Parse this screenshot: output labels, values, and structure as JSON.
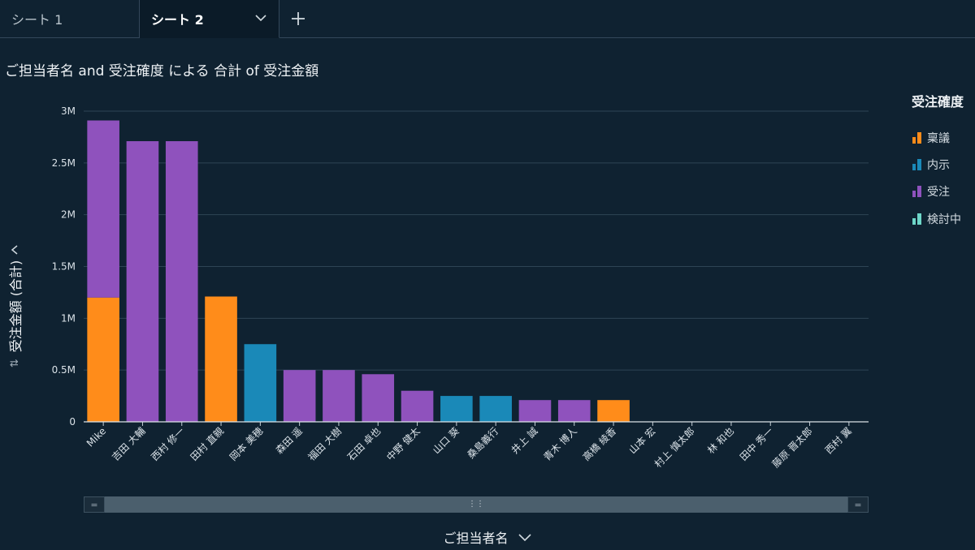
{
  "tabs": [
    {
      "label": "シート 1"
    },
    {
      "label": "シート 2"
    }
  ],
  "title": "ご担当者名 and 受注確度 による 合計 of 受注金額",
  "legend": {
    "title": "受注確度",
    "items": [
      {
        "label": "稟議",
        "color": "#ff8c1a"
      },
      {
        "label": "内示",
        "color": "#1a89b8"
      },
      {
        "label": "受注",
        "color": "#8f52bd"
      },
      {
        "label": "検討中",
        "color": "#6ed6c8"
      }
    ]
  },
  "y_axis_label": "受注金額 (合計)",
  "x_axis_label": "ご担当者名",
  "chart_data": {
    "type": "bar",
    "stacked": true,
    "ylim": [
      0,
      3000000
    ],
    "yticks": [
      {
        "value": 0,
        "label": "0"
      },
      {
        "value": 500000,
        "label": "0.5M"
      },
      {
        "value": 1000000,
        "label": "1M"
      },
      {
        "value": 1500000,
        "label": "1.5M"
      },
      {
        "value": 2000000,
        "label": "2M"
      },
      {
        "value": 2500000,
        "label": "2.5M"
      },
      {
        "value": 3000000,
        "label": "3M"
      }
    ],
    "grid": true,
    "legend_position": "right",
    "categories": [
      "Mike",
      "吉田 大輔",
      "西村 修一",
      "田村 直親",
      "岡本 美穂",
      "森田 遥",
      "福田 大樹",
      "石田 卓也",
      "中野 健太",
      "山口 葵",
      "桑島義行",
      "井上 誠",
      "青木 博人",
      "高橋 綾香",
      "山本 宏",
      "村上 慎太郎",
      "林 和也",
      "田中 秀一",
      "藤原 晋太郎",
      "西村 翼"
    ],
    "series": [
      {
        "name": "稟議",
        "values": [
          1200000,
          0,
          0,
          1210000,
          0,
          0,
          0,
          0,
          0,
          0,
          0,
          0,
          0,
          210000,
          0,
          0,
          0,
          0,
          0,
          0
        ]
      },
      {
        "name": "内示",
        "values": [
          0,
          0,
          0,
          0,
          750000,
          0,
          0,
          0,
          0,
          250000,
          250000,
          0,
          0,
          0,
          0,
          0,
          0,
          0,
          0,
          0
        ]
      },
      {
        "name": "受注",
        "values": [
          1710000,
          2710000,
          2710000,
          0,
          0,
          500000,
          500000,
          460000,
          300000,
          0,
          0,
          210000,
          210000,
          0,
          0,
          0,
          0,
          0,
          0,
          0
        ]
      },
      {
        "name": "検討中",
        "values": [
          0,
          0,
          0,
          0,
          0,
          0,
          0,
          0,
          0,
          0,
          0,
          0,
          0,
          0,
          0,
          0,
          0,
          0,
          0,
          0
        ]
      }
    ]
  }
}
